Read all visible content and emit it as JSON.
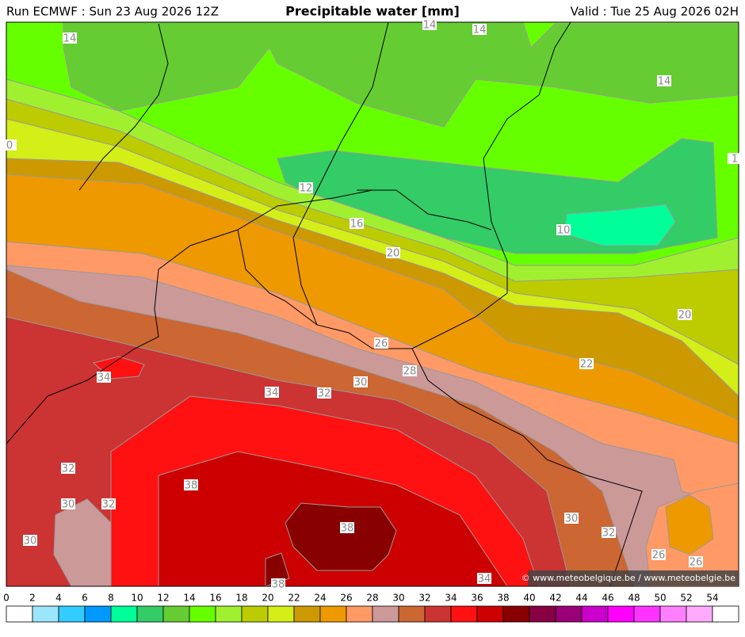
{
  "header": {
    "run": "Run ECMWF : Sun 23 Aug 2026 12Z",
    "title": "Precipitable water [mm]",
    "valid": "Valid : Tue 25 Aug 2026 02H"
  },
  "map": {
    "contour_labels": [
      "14",
      "14",
      "14",
      "14",
      "0",
      "12",
      "16",
      "10",
      "20",
      "20",
      "1",
      "22",
      "26",
      "28",
      "30",
      "34",
      "34",
      "32",
      "32",
      "30",
      "32",
      "38",
      "38",
      "30",
      "30",
      "32",
      "26",
      "26",
      "34",
      "38"
    ]
  },
  "colorbar": {
    "ticks": [
      0,
      2,
      4,
      6,
      8,
      10,
      12,
      14,
      16,
      18,
      20,
      22,
      24,
      26,
      28,
      30,
      32,
      34,
      36,
      38,
      40,
      42,
      44,
      46,
      48,
      50,
      52,
      54
    ],
    "colors": [
      "#ffffff",
      "#9be6fa",
      "#33ccff",
      "#0099ff",
      "#00ff99",
      "#33cc66",
      "#66cc33",
      "#66ff00",
      "#a0f030",
      "#bccc00",
      "#d4ee18",
      "#cc9900",
      "#ee9900",
      "#ff9966",
      "#cc9999",
      "#cc6633",
      "#cc3333",
      "#ff1111",
      "#cc0000",
      "#880000",
      "#880044",
      "#990077",
      "#cc00cc",
      "#ff00ff",
      "#ff33ff",
      "#ff80ff",
      "#ffaaff",
      "#ffffff"
    ]
  },
  "credit": "© www.meteobelgique.be / www.meteobelgie.be"
}
